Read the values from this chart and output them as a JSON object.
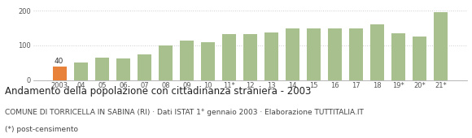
{
  "categories": [
    "2003",
    "04",
    "05",
    "06",
    "07",
    "08",
    "09",
    "10",
    "11*",
    "12",
    "13",
    "14",
    "15",
    "16",
    "17",
    "18",
    "19*",
    "20*",
    "21*"
  ],
  "values": [
    40,
    50,
    65,
    63,
    75,
    100,
    113,
    108,
    133,
    132,
    138,
    150,
    148,
    148,
    148,
    160,
    135,
    126,
    196
  ],
  "bar_colors": [
    "#e8823a",
    "#a8bf8e",
    "#a8bf8e",
    "#a8bf8e",
    "#a8bf8e",
    "#a8bf8e",
    "#a8bf8e",
    "#a8bf8e",
    "#a8bf8e",
    "#a8bf8e",
    "#a8bf8e",
    "#a8bf8e",
    "#a8bf8e",
    "#a8bf8e",
    "#a8bf8e",
    "#a8bf8e",
    "#a8bf8e",
    "#a8bf8e",
    "#a8bf8e"
  ],
  "highlighted_label": "40",
  "highlighted_index": 0,
  "ylim": [
    0,
    215
  ],
  "yticks": [
    0,
    100,
    200
  ],
  "title": "Andamento della popolazione con cittadinanza straniera - 2003",
  "subtitle": "COMUNE DI TORRICELLA IN SABINA (RI) · Dati ISTAT 1° gennaio 2003 · Elaborazione TUTTITALIA.IT",
  "footnote": "(*) post-censimento",
  "title_fontsize": 8.5,
  "subtitle_fontsize": 6.5,
  "footnote_fontsize": 6.5,
  "background_color": "#ffffff",
  "grid_color": "#cccccc",
  "tick_fontsize": 6.0,
  "bar_width": 0.65
}
